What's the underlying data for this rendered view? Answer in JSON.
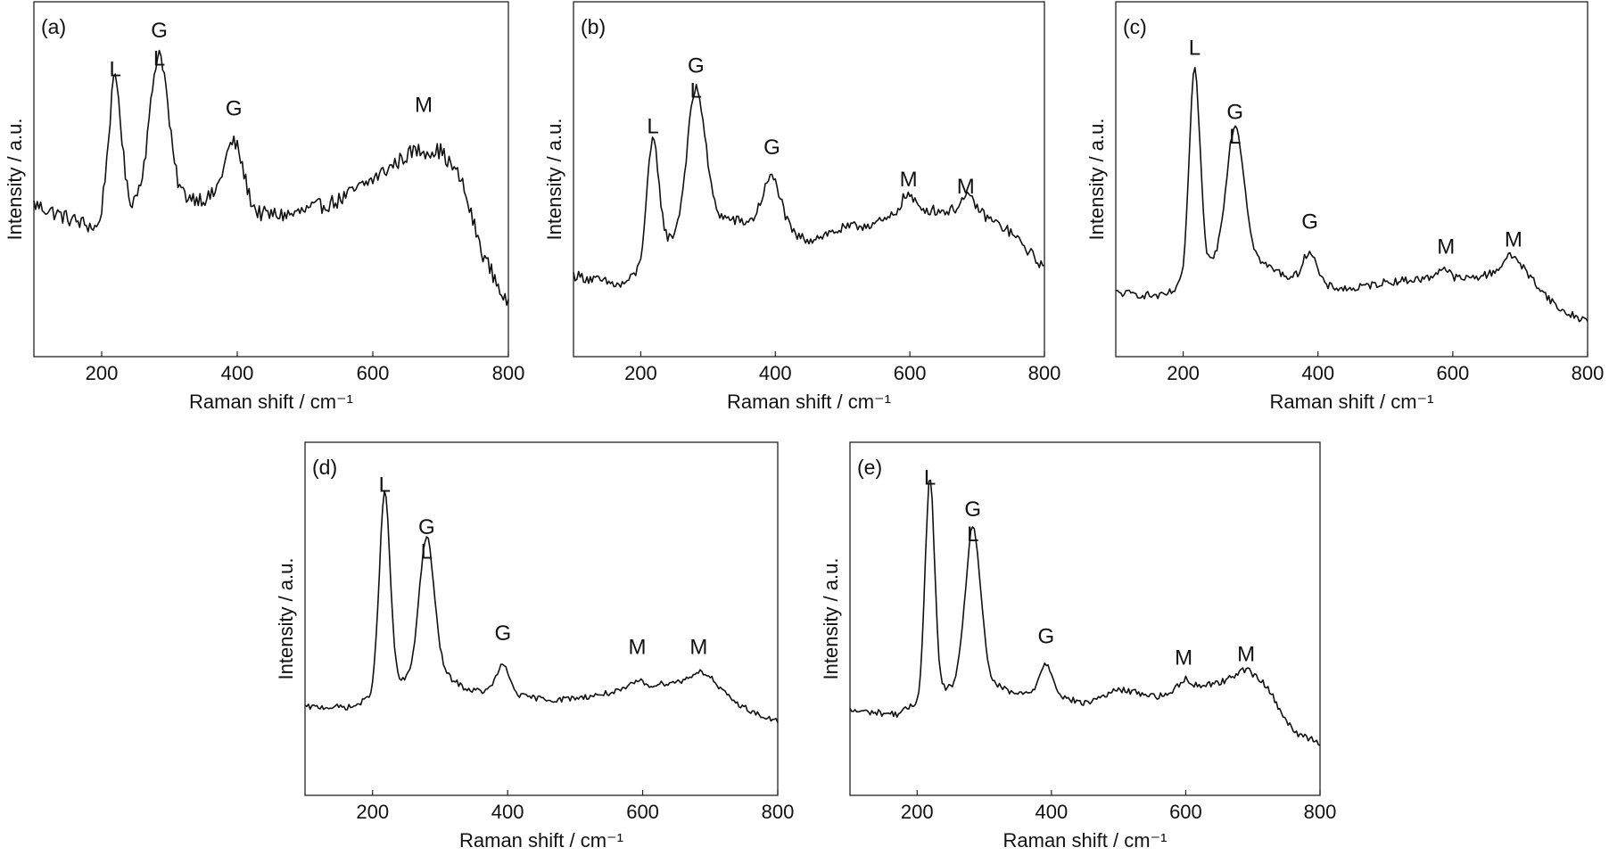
{
  "chart_data": [
    {
      "type": "line",
      "panel_label": "(a)",
      "xlabel": "Raman shift / cm⁻¹",
      "ylabel": "Intensity / a.u.",
      "xlim": [
        100,
        800
      ],
      "ylim": [
        0,
        1
      ],
      "xticks": [
        200,
        400,
        600,
        800
      ],
      "noise": 0.045,
      "baseline": [
        [
          100,
          0.43
        ],
        [
          150,
          0.39
        ],
        [
          195,
          0.36
        ],
        [
          205,
          0.42
        ],
        [
          240,
          0.42
        ],
        [
          260,
          0.46
        ],
        [
          330,
          0.45
        ],
        [
          370,
          0.44
        ],
        [
          430,
          0.4
        ],
        [
          480,
          0.4
        ],
        [
          550,
          0.44
        ],
        [
          600,
          0.5
        ],
        [
          660,
          0.58
        ],
        [
          700,
          0.58
        ],
        [
          730,
          0.5
        ],
        [
          760,
          0.3
        ],
        [
          800,
          0.14
        ]
      ],
      "peaks": [
        [
          220,
          0.36,
          9
        ],
        [
          285,
          0.4,
          13
        ],
        [
          395,
          0.18,
          14
        ]
      ],
      "annotations": [
        {
          "text": "L",
          "x": 220,
          "y": 0.79
        },
        {
          "text": "G",
          "x": 285,
          "y": 0.9
        },
        {
          "text": "L",
          "x": 285,
          "y": 0.82
        },
        {
          "text": "G",
          "x": 395,
          "y": 0.68
        },
        {
          "text": "M",
          "x": 675,
          "y": 0.69
        }
      ]
    },
    {
      "type": "line",
      "panel_label": "(b)",
      "xlabel": "Raman shift / cm⁻¹",
      "ylabel": "Intensity / a.u.",
      "xlim": [
        100,
        800
      ],
      "ylim": [
        0,
        1
      ],
      "xticks": [
        200,
        400,
        600,
        800
      ],
      "noise": 0.03,
      "baseline": [
        [
          100,
          0.23
        ],
        [
          170,
          0.2
        ],
        [
          200,
          0.24
        ],
        [
          240,
          0.32
        ],
        [
          300,
          0.4
        ],
        [
          350,
          0.38
        ],
        [
          420,
          0.34
        ],
        [
          450,
          0.33
        ],
        [
          500,
          0.36
        ],
        [
          560,
          0.38
        ],
        [
          600,
          0.42
        ],
        [
          650,
          0.41
        ],
        [
          700,
          0.41
        ],
        [
          750,
          0.35
        ],
        [
          800,
          0.25
        ]
      ],
      "peaks": [
        [
          218,
          0.33,
          9
        ],
        [
          282,
          0.38,
          13
        ],
        [
          395,
          0.15,
          14
        ],
        [
          595,
          0.04,
          9
        ],
        [
          685,
          0.04,
          10
        ]
      ],
      "annotations": [
        {
          "text": "L",
          "x": 218,
          "y": 0.63
        },
        {
          "text": "G",
          "x": 282,
          "y": 0.8
        },
        {
          "text": "L",
          "x": 282,
          "y": 0.73
        },
        {
          "text": "G",
          "x": 395,
          "y": 0.57
        },
        {
          "text": "M",
          "x": 598,
          "y": 0.48
        },
        {
          "text": "M",
          "x": 683,
          "y": 0.46
        }
      ]
    },
    {
      "type": "line",
      "panel_label": "(c)",
      "xlabel": "Raman shift / cm⁻¹",
      "ylabel": "Intensity / a.u.",
      "xlim": [
        100,
        800
      ],
      "ylim": [
        0,
        1
      ],
      "xticks": [
        200,
        400,
        600,
        800
      ],
      "noise": 0.022,
      "baseline": [
        [
          100,
          0.18
        ],
        [
          170,
          0.17
        ],
        [
          200,
          0.2
        ],
        [
          240,
          0.26
        ],
        [
          300,
          0.28
        ],
        [
          350,
          0.23
        ],
        [
          400,
          0.2
        ],
        [
          450,
          0.19
        ],
        [
          500,
          0.21
        ],
        [
          560,
          0.22
        ],
        [
          620,
          0.22
        ],
        [
          680,
          0.24
        ],
        [
          720,
          0.21
        ],
        [
          760,
          0.13
        ],
        [
          800,
          0.1
        ]
      ],
      "peaks": [
        [
          217,
          0.58,
          8
        ],
        [
          277,
          0.38,
          13
        ],
        [
          388,
          0.09,
          10
        ],
        [
          585,
          0.03,
          9
        ],
        [
          690,
          0.05,
          14
        ]
      ],
      "annotations": [
        {
          "text": "L",
          "x": 217,
          "y": 0.85
        },
        {
          "text": "G",
          "x": 277,
          "y": 0.67
        },
        {
          "text": "L",
          "x": 277,
          "y": 0.6
        },
        {
          "text": "G",
          "x": 388,
          "y": 0.36
        },
        {
          "text": "M",
          "x": 590,
          "y": 0.29
        },
        {
          "text": "M",
          "x": 690,
          "y": 0.31
        }
      ]
    },
    {
      "type": "line",
      "panel_label": "(d)",
      "xlabel": "Raman shift / cm⁻¹",
      "ylabel": "Intensity / a.u.",
      "xlim": [
        100,
        800
      ],
      "ylim": [
        0,
        1
      ],
      "xticks": [
        200,
        400,
        600,
        800
      ],
      "noise": 0.016,
      "baseline": [
        [
          100,
          0.25
        ],
        [
          170,
          0.25
        ],
        [
          200,
          0.28
        ],
        [
          240,
          0.32
        ],
        [
          300,
          0.35
        ],
        [
          340,
          0.3
        ],
        [
          420,
          0.28
        ],
        [
          470,
          0.27
        ],
        [
          520,
          0.28
        ],
        [
          580,
          0.3
        ],
        [
          640,
          0.32
        ],
        [
          700,
          0.32
        ],
        [
          740,
          0.26
        ],
        [
          780,
          0.22
        ],
        [
          800,
          0.21
        ]
      ],
      "peaks": [
        [
          218,
          0.56,
          8
        ],
        [
          280,
          0.39,
          11
        ],
        [
          393,
          0.08,
          10
        ],
        [
          592,
          0.02,
          9
        ],
        [
          685,
          0.03,
          14
        ]
      ],
      "annotations": [
        {
          "text": "L",
          "x": 218,
          "y": 0.86
        },
        {
          "text": "G",
          "x": 280,
          "y": 0.74
        },
        {
          "text": "L",
          "x": 280,
          "y": 0.67
        },
        {
          "text": "G",
          "x": 393,
          "y": 0.44
        },
        {
          "text": "M",
          "x": 592,
          "y": 0.4
        },
        {
          "text": "M",
          "x": 683,
          "y": 0.4
        }
      ]
    },
    {
      "type": "line",
      "panel_label": "(e)",
      "xlabel": "Raman shift / cm⁻¹",
      "ylabel": "Intensity / a.u.",
      "xlim": [
        100,
        800
      ],
      "ylim": [
        0,
        1
      ],
      "xticks": [
        200,
        400,
        600,
        800
      ],
      "noise": 0.018,
      "baseline": [
        [
          100,
          0.24
        ],
        [
          170,
          0.23
        ],
        [
          200,
          0.26
        ],
        [
          240,
          0.3
        ],
        [
          300,
          0.33
        ],
        [
          340,
          0.29
        ],
        [
          410,
          0.28
        ],
        [
          450,
          0.26
        ],
        [
          500,
          0.3
        ],
        [
          560,
          0.28
        ],
        [
          620,
          0.31
        ],
        [
          680,
          0.33
        ],
        [
          720,
          0.31
        ],
        [
          760,
          0.18
        ],
        [
          800,
          0.15
        ]
      ],
      "peaks": [
        [
          219,
          0.62,
          7
        ],
        [
          283,
          0.44,
          11
        ],
        [
          392,
          0.09,
          10
        ],
        [
          598,
          0.03,
          9
        ],
        [
          690,
          0.03,
          14
        ]
      ],
      "annotations": [
        {
          "text": "L",
          "x": 219,
          "y": 0.88
        },
        {
          "text": "G",
          "x": 283,
          "y": 0.79
        },
        {
          "text": "L",
          "x": 283,
          "y": 0.72
        },
        {
          "text": "G",
          "x": 392,
          "y": 0.43
        },
        {
          "text": "M",
          "x": 597,
          "y": 0.37
        },
        {
          "text": "M",
          "x": 690,
          "y": 0.38
        }
      ]
    }
  ]
}
